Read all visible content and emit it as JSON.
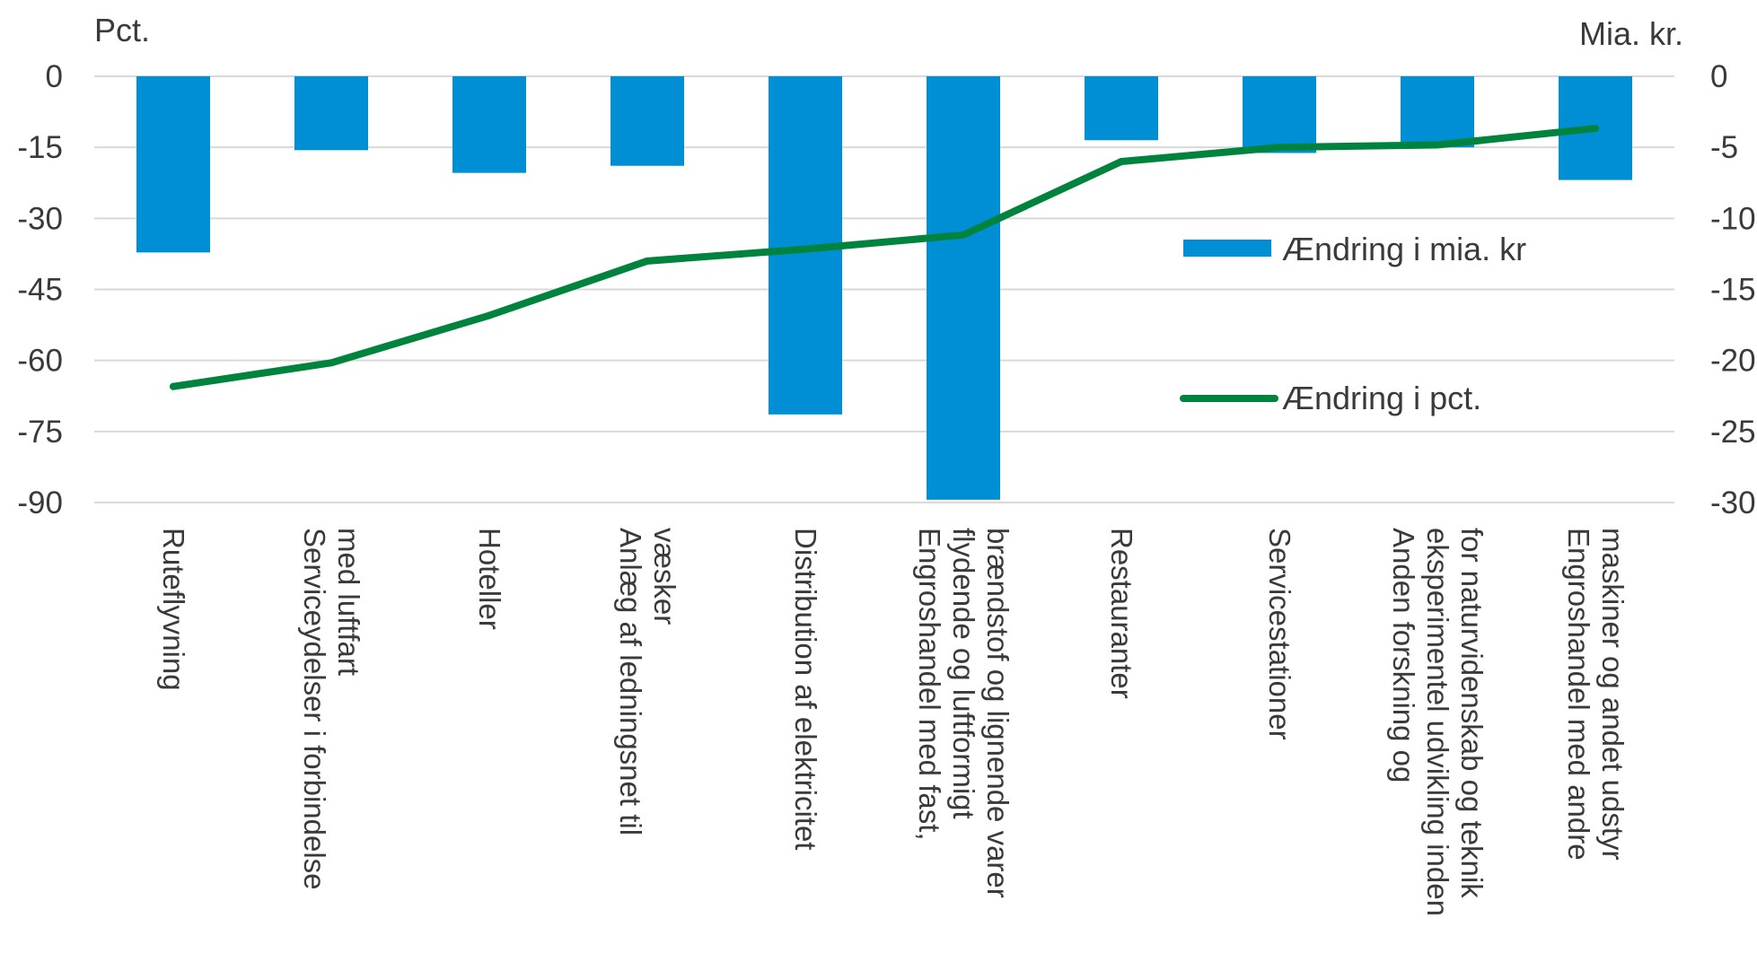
{
  "chart_data": {
    "type": "bar",
    "title": "",
    "left_axis": {
      "label": "Pct.",
      "ticks": [
        "0",
        "-15",
        "-30",
        "-45",
        "-60",
        "-75",
        "-90"
      ],
      "range": [
        -90,
        0
      ]
    },
    "right_axis": {
      "label": "Mia. kr.",
      "ticks": [
        "0",
        "-5",
        "-10",
        "-15",
        "-20",
        "-25",
        "-30"
      ],
      "range": [
        -30,
        0
      ]
    },
    "categories": [
      [
        "Ruteflyvning"
      ],
      [
        "Serviceydelser i forbindelse",
        "med luftfart"
      ],
      [
        "Hoteller"
      ],
      [
        "Anlæg af ledningsnet til",
        "væsker"
      ],
      [
        "Distribution af elektricitet"
      ],
      [
        "Engroshandel med fast,",
        "flydende og luftformigt",
        "brændstof og lignende varer"
      ],
      [
        "Restauranter"
      ],
      [
        "Servicestationer"
      ],
      [
        "Anden forskning og",
        "eksperimentel udvikling inden",
        "for naturvidenskab og teknik"
      ],
      [
        "Engroshandel med andre",
        "maskiner og andet udstyr"
      ]
    ],
    "series": [
      {
        "name": "Ændring i mia. kr",
        "type": "bar",
        "axis": "right",
        "color": "#008fd5",
        "values": [
          -12.4,
          -5.2,
          -6.8,
          -6.3,
          -23.8,
          -29.8,
          -4.5,
          -5.4,
          -5.0,
          -7.3
        ]
      },
      {
        "name": "Ændring i pct.",
        "type": "line",
        "axis": "left",
        "color": "#00843d",
        "values": [
          -65.5,
          -60.5,
          -50.5,
          -39.0,
          -36.5,
          -33.5,
          -18.0,
          -15.0,
          -14.5,
          -11.0
        ]
      }
    ],
    "grid": true,
    "legend_position": "right"
  }
}
